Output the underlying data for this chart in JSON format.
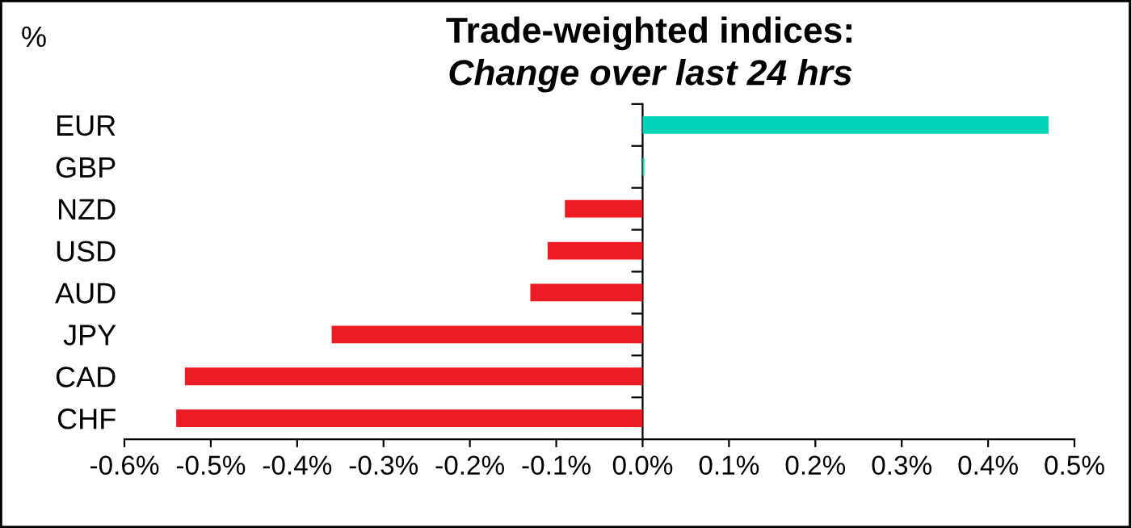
{
  "chart_data": {
    "type": "bar",
    "orientation": "horizontal",
    "title": "Trade-weighted indices:",
    "subtitle": "Change over last 24 hrs",
    "ylabel": "%",
    "categories": [
      "EUR",
      "GBP",
      "NZD",
      "USD",
      "AUD",
      "JPY",
      "CAD",
      "CHF"
    ],
    "values": [
      0.47,
      0.002,
      -0.09,
      -0.11,
      -0.13,
      -0.36,
      -0.53,
      -0.54
    ],
    "colors": [
      "#00d4b8",
      "#00d4b8",
      "#ed1c24",
      "#ed1c24",
      "#ed1c24",
      "#ed1c24",
      "#ed1c24",
      "#ed1c24"
    ],
    "xlim": [
      -0.6,
      0.5
    ],
    "xticks": [
      {
        "value": -0.6,
        "label": "-0.6%"
      },
      {
        "value": -0.5,
        "label": "-0.5%"
      },
      {
        "value": -0.4,
        "label": "-0.4%"
      },
      {
        "value": -0.3,
        "label": "-0.3%"
      },
      {
        "value": -0.2,
        "label": "-0.2%"
      },
      {
        "value": -0.1,
        "label": "-0.1%"
      },
      {
        "value": 0,
        "label": "0.0%"
      },
      {
        "value": 0.1,
        "label": "0.1%"
      },
      {
        "value": 0.2,
        "label": "0.2%"
      },
      {
        "value": 0.3,
        "label": "0.3%"
      },
      {
        "value": 0.4,
        "label": "0.4%"
      },
      {
        "value": 0.5,
        "label": "0.5%"
      }
    ],
    "legend": false
  }
}
